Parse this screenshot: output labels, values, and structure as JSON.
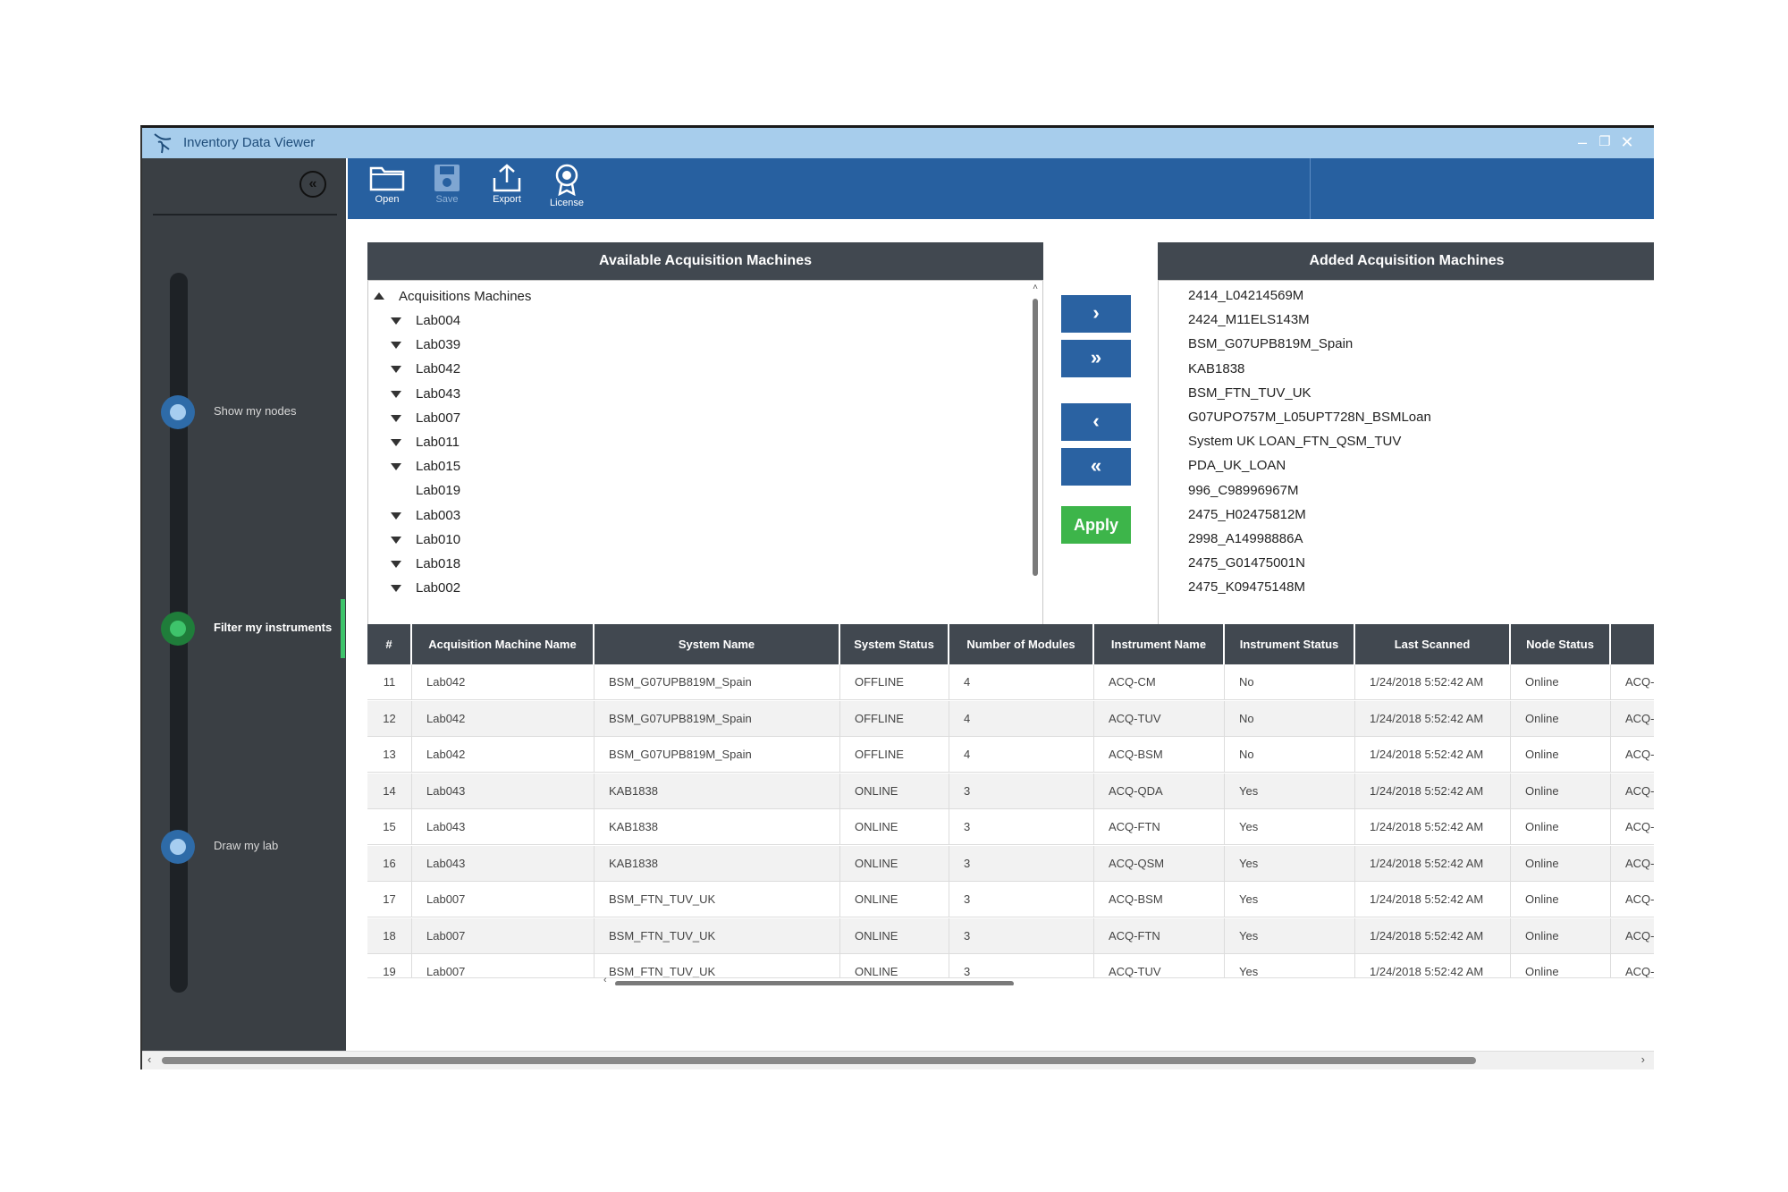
{
  "window": {
    "title": "Inventory Data Viewer",
    "minimize": "–",
    "restore": "❐",
    "close": "✕"
  },
  "sidebar": {
    "collapse_icon": "«",
    "steps": [
      {
        "label": "Show my nodes",
        "state": "inactive"
      },
      {
        "label": "Filter my instruments",
        "state": "active"
      },
      {
        "label": "Draw my lab",
        "state": "inactive"
      }
    ]
  },
  "toolbar": {
    "open": "Open",
    "save": "Save",
    "export": "Export",
    "license": "License"
  },
  "available": {
    "header": "Available Acquisition Machines",
    "root": "Acquisitions Machines",
    "items": [
      {
        "label": "Lab004",
        "expandable": true
      },
      {
        "label": "Lab039",
        "expandable": true
      },
      {
        "label": "Lab042",
        "expandable": true
      },
      {
        "label": "Lab043",
        "expandable": true
      },
      {
        "label": "Lab007",
        "expandable": true
      },
      {
        "label": "Lab011",
        "expandable": true
      },
      {
        "label": "Lab015",
        "expandable": true
      },
      {
        "label": "Lab019",
        "expandable": false
      },
      {
        "label": "Lab003",
        "expandable": true
      },
      {
        "label": "Lab010",
        "expandable": true
      },
      {
        "label": "Lab018",
        "expandable": true
      },
      {
        "label": "Lab002",
        "expandable": true
      }
    ]
  },
  "transfer": {
    "add_one": "›",
    "add_all": "»",
    "remove_one": "‹",
    "remove_all": "«",
    "apply": "Apply"
  },
  "added": {
    "header": "Added Acquisition Machines",
    "items": [
      "2414_L04214569M",
      "2424_M11ELS143M",
      "BSM_G07UPB819M_Spain",
      "KAB1838",
      "BSM_FTN_TUV_UK",
      "G07UPO757M_L05UPT728N_BSMLoan",
      "System UK LOAN_FTN_QSM_TUV",
      "PDA_UK_LOAN",
      "996_C98996967M",
      "2475_H02475812M",
      "2998_A14998886A",
      "2475_G01475001N",
      "2475_K09475148M"
    ]
  },
  "grid": {
    "columns": [
      "#",
      "Acquisition Machine Name",
      "System Name",
      "System Status",
      "Number of Modules",
      "Instrument Name",
      "Instrument Status",
      "Last Scanned",
      "Node Status",
      ""
    ],
    "rows": [
      [
        "11",
        "Lab042",
        "BSM_G07UPB819M_Spain",
        "OFFLINE",
        "4",
        "ACQ-CM",
        "No",
        "1/24/2018 5:52:42 AM",
        "Online",
        "ACQ-"
      ],
      [
        "12",
        "Lab042",
        "BSM_G07UPB819M_Spain",
        "OFFLINE",
        "4",
        "ACQ-TUV",
        "No",
        "1/24/2018 5:52:42 AM",
        "Online",
        "ACQ-"
      ],
      [
        "13",
        "Lab042",
        "BSM_G07UPB819M_Spain",
        "OFFLINE",
        "4",
        "ACQ-BSM",
        "No",
        "1/24/2018 5:52:42 AM",
        "Online",
        "ACQ-"
      ],
      [
        "14",
        "Lab043",
        "KAB1838",
        "ONLINE",
        "3",
        "ACQ-QDA",
        "Yes",
        "1/24/2018 5:52:42 AM",
        "Online",
        "ACQ-"
      ],
      [
        "15",
        "Lab043",
        "KAB1838",
        "ONLINE",
        "3",
        "ACQ-FTN",
        "Yes",
        "1/24/2018 5:52:42 AM",
        "Online",
        "ACQ-"
      ],
      [
        "16",
        "Lab043",
        "KAB1838",
        "ONLINE",
        "3",
        "ACQ-QSM",
        "Yes",
        "1/24/2018 5:52:42 AM",
        "Online",
        "ACQ-"
      ],
      [
        "17",
        "Lab007",
        "BSM_FTN_TUV_UK",
        "ONLINE",
        "3",
        "ACQ-BSM",
        "Yes",
        "1/24/2018 5:52:42 AM",
        "Online",
        "ACQ-"
      ],
      [
        "18",
        "Lab007",
        "BSM_FTN_TUV_UK",
        "ONLINE",
        "3",
        "ACQ-FTN",
        "Yes",
        "1/24/2018 5:52:42 AM",
        "Online",
        "ACQ-"
      ],
      [
        "19",
        "Lab007",
        "BSM_FTN_TUV_UK",
        "ONLINE",
        "3",
        "ACQ-TUV",
        "Yes",
        "1/24/2018 5:52:42 AM",
        "Online",
        "ACQ-"
      ]
    ]
  },
  "colors": {
    "titlebar": "#a7cdec",
    "toolbar": "#2760a0",
    "sidebar": "#3a3f44",
    "panel_header": "#414850",
    "action_button": "#2a62a2",
    "apply_button": "#3db54a",
    "active_step": "#3ec46b"
  }
}
